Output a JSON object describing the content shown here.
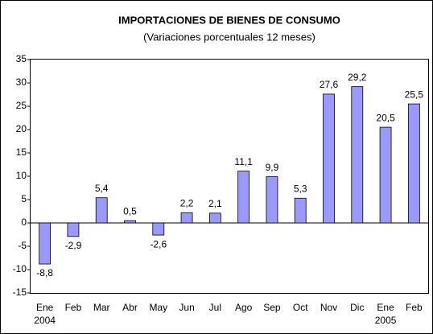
{
  "chart_data": {
    "type": "bar",
    "title": "IMPORTACIONES DE BIENES DE CONSUMO",
    "subtitle": "(Variaciones porcentuales 12 meses)",
    "categories": [
      "Ene 2004",
      "Feb",
      "Mar",
      "Abr",
      "May",
      "Jun",
      "Jul",
      "Ago",
      "Sep",
      "Oct",
      "Nov",
      "Dic",
      "Ene 2005",
      "Feb"
    ],
    "values": [
      -8.8,
      -2.9,
      5.4,
      0.5,
      -2.6,
      2.2,
      2.1,
      11.1,
      9.9,
      5.3,
      27.6,
      29.2,
      20.5,
      25.5
    ],
    "value_labels": [
      "-8,8",
      "-2,9",
      "5,4",
      "0,5",
      "-2,6",
      "2,2",
      "2,1",
      "11,1",
      "9,9",
      "5,3",
      "27,6",
      "29,2",
      "20,5",
      "25,5"
    ],
    "color": "#9999ff",
    "ylim": [
      -15,
      35
    ],
    "yticks": [
      -15,
      -10,
      -5,
      0,
      5,
      10,
      15,
      20,
      25,
      30,
      35
    ],
    "grid": false
  }
}
